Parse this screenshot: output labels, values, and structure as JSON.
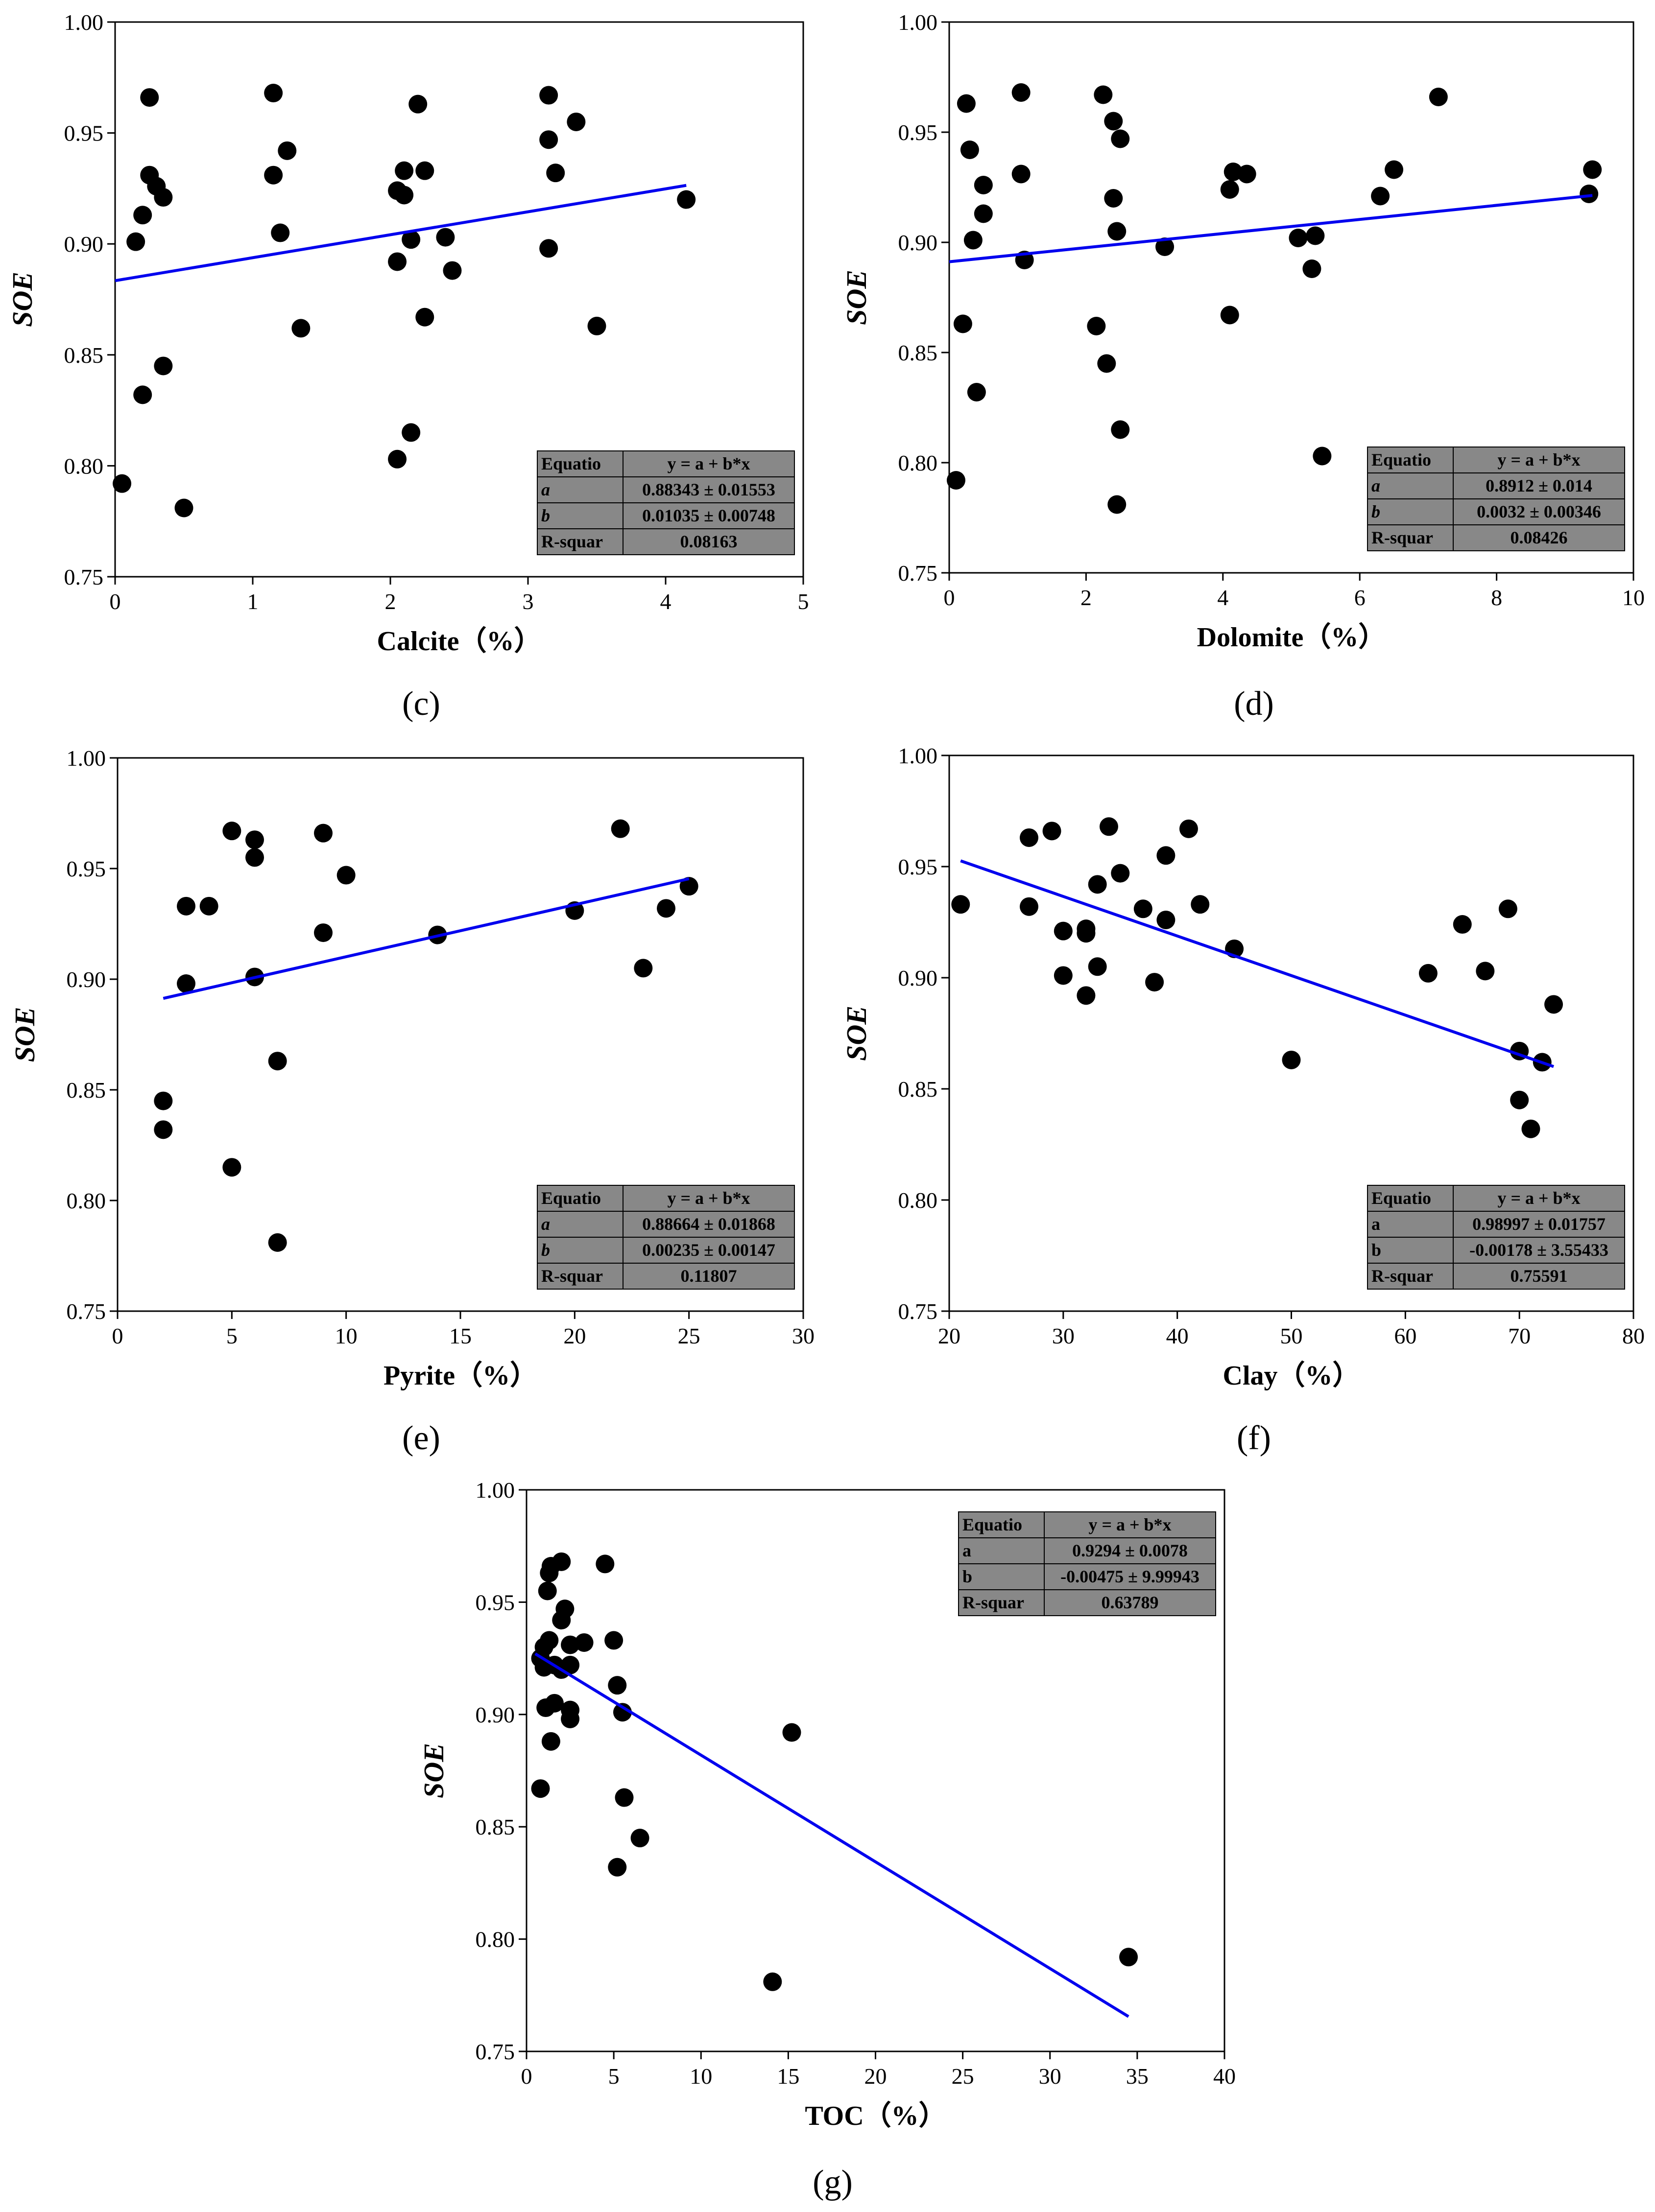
{
  "chart_data": [
    {
      "id": "c",
      "type": "scatter",
      "panel_label": "(c)",
      "xlabel": "Calcite（%）",
      "ylabel": "SOE",
      "xlim": [
        0,
        5
      ],
      "ylim": [
        0.75,
        1.0
      ],
      "xticks": [
        0,
        1,
        2,
        3,
        4,
        5
      ],
      "xtick_labels": [
        "0",
        "1",
        "2",
        "3",
        "4",
        "5"
      ],
      "yticks": [
        0.75,
        0.8,
        0.85,
        0.9,
        0.95,
        1.0
      ],
      "ytick_labels": [
        "0.75",
        "0.80",
        "0.85",
        "0.90",
        "0.95",
        "1.00"
      ],
      "points": [
        [
          0.05,
          0.792
        ],
        [
          0.15,
          0.901
        ],
        [
          0.2,
          0.913
        ],
        [
          0.2,
          0.832
        ],
        [
          0.25,
          0.966
        ],
        [
          0.25,
          0.931
        ],
        [
          0.3,
          0.926
        ],
        [
          0.35,
          0.921
        ],
        [
          0.35,
          0.845
        ],
        [
          0.5,
          0.781
        ],
        [
          1.15,
          0.968
        ],
        [
          1.15,
          0.931
        ],
        [
          1.2,
          0.905
        ],
        [
          1.25,
          0.942
        ],
        [
          1.35,
          0.862
        ],
        [
          2.05,
          0.924
        ],
        [
          2.05,
          0.892
        ],
        [
          2.05,
          0.803
        ],
        [
          2.1,
          0.933
        ],
        [
          2.1,
          0.922
        ],
        [
          2.15,
          0.902
        ],
        [
          2.15,
          0.815
        ],
        [
          2.2,
          0.963
        ],
        [
          2.25,
          0.933
        ],
        [
          2.25,
          0.867
        ],
        [
          2.4,
          0.903
        ],
        [
          2.45,
          0.888
        ],
        [
          3.15,
          0.967
        ],
        [
          3.15,
          0.947
        ],
        [
          3.15,
          0.898
        ],
        [
          3.2,
          0.932
        ],
        [
          3.35,
          0.955
        ],
        [
          3.5,
          0.863
        ],
        [
          4.15,
          0.92
        ]
      ],
      "fit": {
        "intercept": 0.88343,
        "slope": 0.01035,
        "x_range": [
          0,
          4.15
        ]
      },
      "equation_table": {
        "position": "bottom-right",
        "rows": [
          [
            "Equatio",
            "y = a + b*x"
          ],
          [
            "a",
            "0.88343 ± 0.01553"
          ],
          [
            "b",
            "0.01035 ± 0.00748"
          ],
          [
            "R-squar",
            "0.08163"
          ]
        ],
        "italic_params": true
      }
    },
    {
      "id": "d",
      "type": "scatter",
      "panel_label": "(d)",
      "xlabel": "Dolomite（%）",
      "ylabel": "SOE",
      "xlim": [
        0,
        10
      ],
      "ylim": [
        0.75,
        1.0
      ],
      "xticks": [
        0,
        2,
        4,
        6,
        8,
        10
      ],
      "xtick_labels": [
        "0",
        "2",
        "4",
        "6",
        "8",
        "10"
      ],
      "yticks": [
        0.75,
        0.8,
        0.85,
        0.9,
        0.95,
        1.0
      ],
      "ytick_labels": [
        "0.75",
        "0.80",
        "0.85",
        "0.90",
        "0.95",
        "1.00"
      ],
      "points": [
        [
          0.1,
          0.792
        ],
        [
          0.2,
          0.863
        ],
        [
          0.25,
          0.963
        ],
        [
          0.3,
          0.942
        ],
        [
          0.35,
          0.901
        ],
        [
          0.4,
          0.832
        ],
        [
          0.5,
          0.926
        ],
        [
          0.5,
          0.913
        ],
        [
          1.05,
          0.968
        ],
        [
          1.05,
          0.931
        ],
        [
          1.1,
          0.892
        ],
        [
          2.15,
          0.862
        ],
        [
          2.25,
          0.967
        ],
        [
          2.3,
          0.845
        ],
        [
          2.4,
          0.955
        ],
        [
          2.4,
          0.92
        ],
        [
          2.45,
          0.905
        ],
        [
          2.45,
          0.781
        ],
        [
          2.5,
          0.947
        ],
        [
          2.5,
          0.815
        ],
        [
          3.15,
          0.898
        ],
        [
          4.1,
          0.924
        ],
        [
          4.1,
          0.867
        ],
        [
          4.15,
          0.932
        ],
        [
          4.35,
          0.931
        ],
        [
          5.1,
          0.902
        ],
        [
          5.3,
          0.888
        ],
        [
          5.35,
          0.903
        ],
        [
          5.45,
          0.803
        ],
        [
          6.3,
          0.921
        ],
        [
          6.5,
          0.933
        ],
        [
          7.15,
          0.966
        ],
        [
          9.35,
          0.922
        ],
        [
          9.4,
          0.933
        ]
      ],
      "fit": {
        "intercept": 0.8912,
        "slope": 0.0032,
        "x_range": [
          0,
          9.4
        ]
      },
      "equation_table": {
        "position": "bottom-right",
        "rows": [
          [
            "Equatio",
            "y = a + b*x"
          ],
          [
            "a",
            "0.8912 ± 0.014"
          ],
          [
            "b",
            "0.0032 ± 0.00346"
          ],
          [
            "R-squar",
            "0.08426"
          ]
        ],
        "italic_params": true
      }
    },
    {
      "id": "e",
      "type": "scatter",
      "panel_label": "(e)",
      "xlabel": "Pyrite（%）",
      "ylabel": "SOE",
      "xlim": [
        0,
        30
      ],
      "ylim": [
        0.75,
        1.0
      ],
      "xticks": [
        0,
        5,
        10,
        15,
        20,
        25,
        30
      ],
      "xtick_labels": [
        "0",
        "5",
        "10",
        "15",
        "20",
        "25",
        "30"
      ],
      "yticks": [
        0.75,
        0.8,
        0.85,
        0.9,
        0.95,
        1.0
      ],
      "ytick_labels": [
        "0.75",
        "0.80",
        "0.85",
        "0.90",
        "0.95",
        "1.00"
      ],
      "points": [
        [
          2,
          0.845
        ],
        [
          2,
          0.832
        ],
        [
          3,
          0.933
        ],
        [
          3,
          0.898
        ],
        [
          4,
          0.933
        ],
        [
          5,
          0.967
        ],
        [
          5,
          0.815
        ],
        [
          6,
          0.963
        ],
        [
          6,
          0.955
        ],
        [
          6,
          0.901
        ],
        [
          7,
          0.863
        ],
        [
          7,
          0.781
        ],
        [
          9,
          0.966
        ],
        [
          9,
          0.921
        ],
        [
          10,
          0.947
        ],
        [
          14,
          0.92
        ],
        [
          20,
          0.931
        ],
        [
          22,
          0.968
        ],
        [
          23,
          0.905
        ],
        [
          24,
          0.932
        ],
        [
          25,
          0.942
        ]
      ],
      "fit": {
        "intercept": 0.88664,
        "slope": 0.00235,
        "x_range": [
          2,
          25
        ]
      },
      "equation_table": {
        "position": "bottom-right",
        "rows": [
          [
            "Equatio",
            "y = a + b*x"
          ],
          [
            "a",
            "0.88664 ± 0.01868"
          ],
          [
            "b",
            "0.00235 ± 0.00147"
          ],
          [
            "R-squar",
            "0.11807"
          ]
        ],
        "italic_params": true
      }
    },
    {
      "id": "f",
      "type": "scatter",
      "panel_label": "(f)",
      "xlabel": "Clay（%）",
      "ylabel": "SOE",
      "xlim": [
        20,
        80
      ],
      "ylim": [
        0.75,
        1.0
      ],
      "xticks": [
        20,
        30,
        40,
        50,
        60,
        70,
        80
      ],
      "xtick_labels": [
        "20",
        "30",
        "40",
        "50",
        "60",
        "70",
        "80"
      ],
      "yticks": [
        0.75,
        0.8,
        0.85,
        0.9,
        0.95,
        1.0
      ],
      "ytick_labels": [
        "0.75",
        "0.80",
        "0.85",
        "0.90",
        "0.95",
        "1.00"
      ],
      "points": [
        [
          21,
          0.933
        ],
        [
          27,
          0.963
        ],
        [
          27,
          0.932
        ],
        [
          29,
          0.966
        ],
        [
          30,
          0.921
        ],
        [
          30,
          0.901
        ],
        [
          32,
          0.922
        ],
        [
          32,
          0.92
        ],
        [
          32,
          0.892
        ],
        [
          33,
          0.942
        ],
        [
          33,
          0.905
        ],
        [
          34,
          0.968
        ],
        [
          35,
          0.947
        ],
        [
          37,
          0.931
        ],
        [
          38,
          0.898
        ],
        [
          39,
          0.955
        ],
        [
          39,
          0.926
        ],
        [
          41,
          0.967
        ],
        [
          42,
          0.933
        ],
        [
          45,
          0.913
        ],
        [
          50,
          0.863
        ],
        [
          62,
          0.902
        ],
        [
          65,
          0.924
        ],
        [
          67,
          0.903
        ],
        [
          69,
          0.931
        ],
        [
          70,
          0.867
        ],
        [
          70,
          0.845
        ],
        [
          71,
          0.832
        ],
        [
          72,
          0.862
        ],
        [
          73,
          0.888
        ]
      ],
      "fit": {
        "intercept": 0.98997,
        "slope": -0.00178,
        "x_range": [
          21,
          73
        ]
      },
      "equation_table": {
        "position": "bottom-right",
        "rows": [
          [
            "Equatio",
            "y = a + b*x"
          ],
          [
            "a",
            "0.98997 ± 0.01757"
          ],
          [
            "b",
            "-0.00178 ± 3.55433"
          ],
          [
            "R-squar",
            "0.75591"
          ]
        ],
        "italic_params": false
      }
    },
    {
      "id": "g",
      "type": "scatter",
      "panel_label": "(g)",
      "xlabel": "TOC（%）",
      "ylabel": "SOE",
      "xlim": [
        0,
        40
      ],
      "ylim": [
        0.75,
        1.0
      ],
      "xticks": [
        0,
        5,
        10,
        15,
        20,
        25,
        30,
        35,
        40
      ],
      "xtick_labels": [
        "0",
        "5",
        "10",
        "15",
        "20",
        "25",
        "30",
        "35",
        "40"
      ],
      "yticks": [
        0.75,
        0.8,
        0.85,
        0.9,
        0.95,
        1.0
      ],
      "ytick_labels": [
        "0.75",
        "0.80",
        "0.85",
        "0.90",
        "0.95",
        "1.00"
      ],
      "points": [
        [
          0.8,
          0.867
        ],
        [
          0.8,
          0.925
        ],
        [
          1.0,
          0.93
        ],
        [
          1.0,
          0.921
        ],
        [
          1.1,
          0.903
        ],
        [
          1.2,
          0.955
        ],
        [
          1.3,
          0.963
        ],
        [
          1.3,
          0.933
        ],
        [
          1.4,
          0.966
        ],
        [
          1.4,
          0.888
        ],
        [
          1.6,
          0.905
        ],
        [
          1.6,
          0.922
        ],
        [
          2.0,
          0.968
        ],
        [
          2.0,
          0.942
        ],
        [
          2.0,
          0.92
        ],
        [
          2.2,
          0.947
        ],
        [
          2.5,
          0.931
        ],
        [
          2.5,
          0.922
        ],
        [
          2.5,
          0.902
        ],
        [
          2.5,
          0.898
        ],
        [
          3.3,
          0.932
        ],
        [
          4.5,
          0.967
        ],
        [
          5.0,
          0.933
        ],
        [
          5.2,
          0.913
        ],
        [
          5.2,
          0.832
        ],
        [
          5.5,
          0.901
        ],
        [
          5.6,
          0.863
        ],
        [
          6.5,
          0.845
        ],
        [
          14.1,
          0.781
        ],
        [
          15.2,
          0.892
        ],
        [
          34.5,
          0.792
        ]
      ],
      "fit": {
        "intercept": 0.9294,
        "slope": -0.00475,
        "x_range": [
          0.5,
          34.5
        ]
      },
      "equation_table": {
        "position": "top-right",
        "rows": [
          [
            "Equatio",
            "y = a + b*x"
          ],
          [
            "a",
            "0.9294 ± 0.0078"
          ],
          [
            "b",
            "-0.00475 ± 9.99943"
          ],
          [
            "R-squar",
            "0.63789"
          ]
        ],
        "italic_params": false
      }
    }
  ]
}
